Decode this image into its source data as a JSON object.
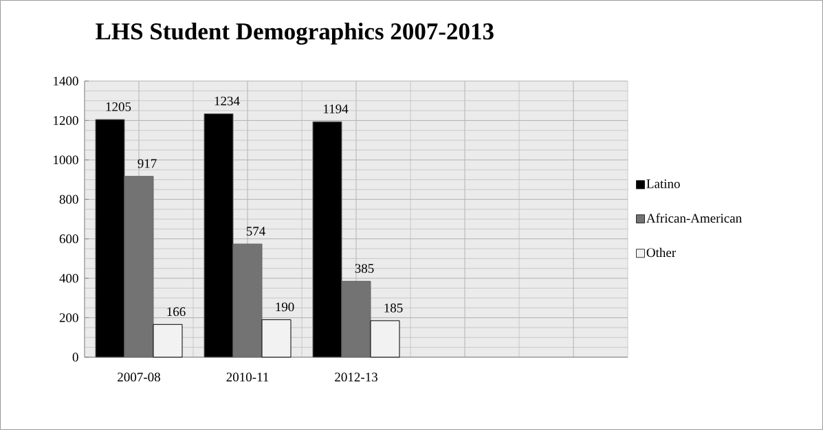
{
  "chart_data": {
    "type": "bar",
    "title": "LHS Student Demographics 2007-2013",
    "categories": [
      "2007-08",
      "2010-11",
      "2012-13",
      null,
      null
    ],
    "series": [
      {
        "name": "Latino",
        "color": "#000000",
        "values": [
          1205,
          1234,
          1194,
          null,
          null
        ]
      },
      {
        "name": "African-American",
        "color": "#737373",
        "values": [
          917,
          574,
          385,
          null,
          null
        ]
      },
      {
        "name": "Other",
        "color": "#f2f2f2",
        "values": [
          166,
          190,
          185,
          null,
          null
        ]
      }
    ],
    "ylim": [
      0,
      1400
    ],
    "yticks": [
      0,
      200,
      400,
      600,
      800,
      1000,
      1200,
      1400
    ],
    "grid": true,
    "legend": "right",
    "data_labels": true
  }
}
